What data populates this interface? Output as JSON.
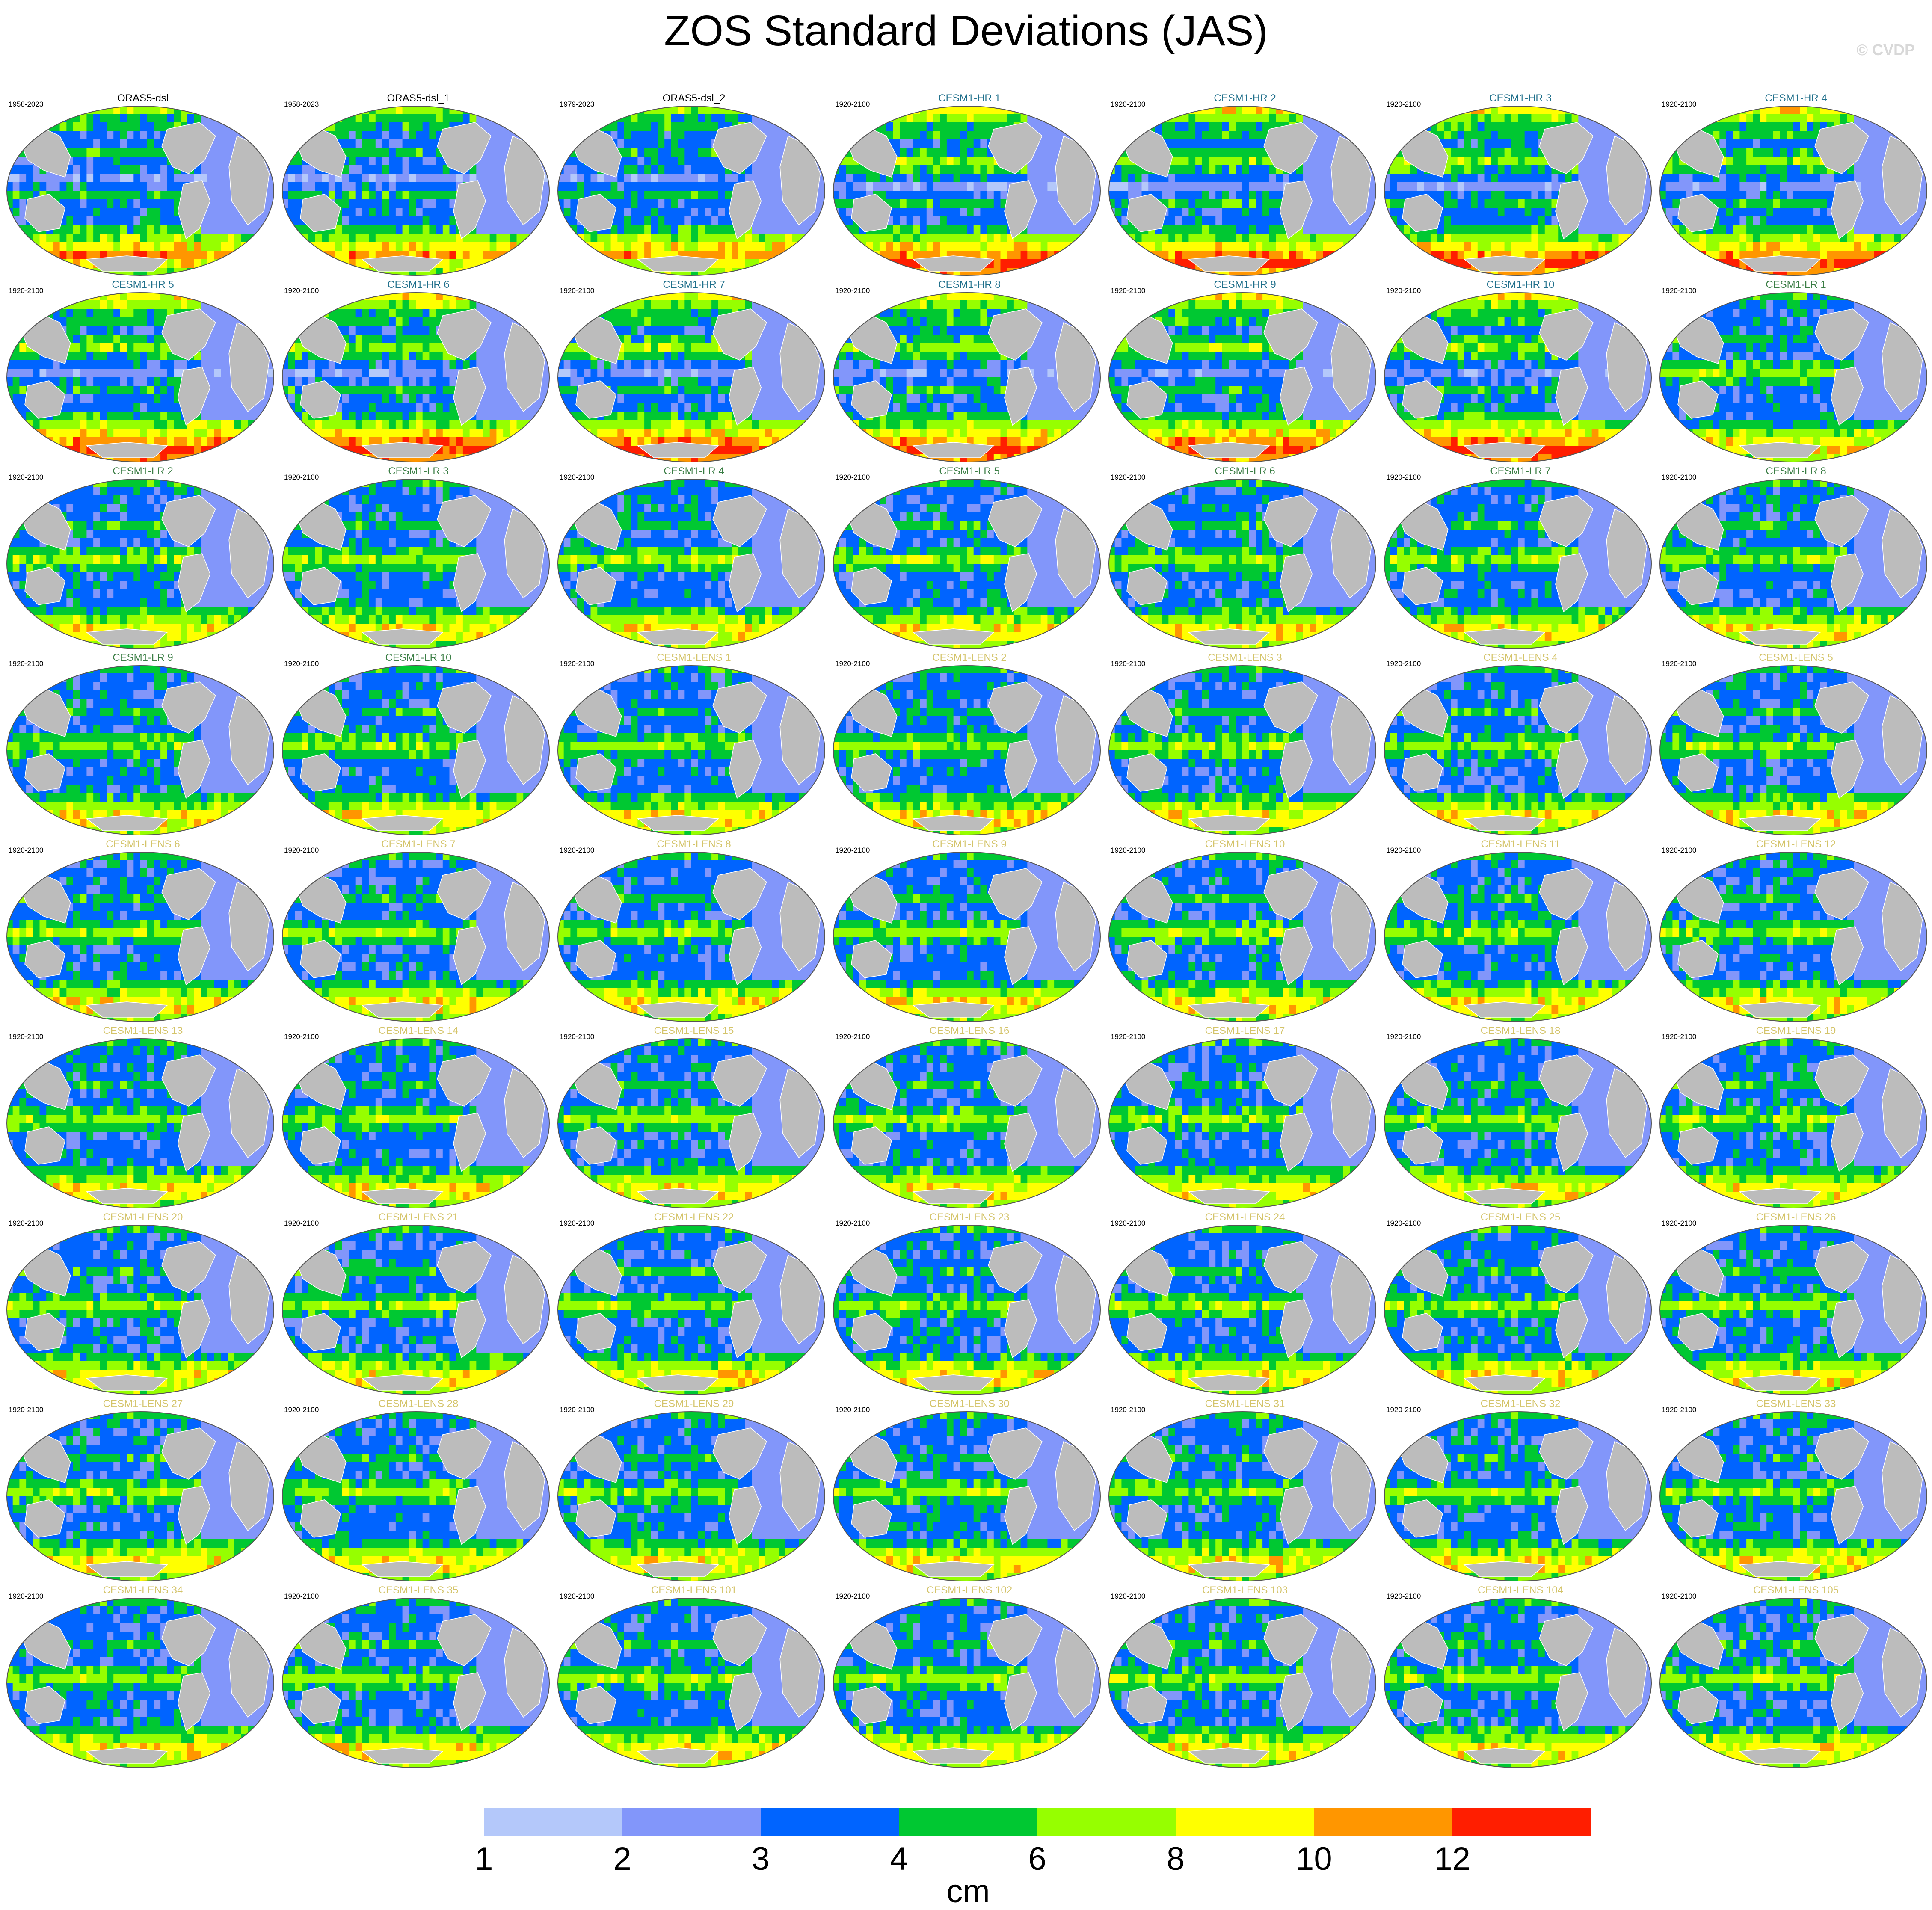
{
  "title": "ZOS Standard Deviations (JAS)",
  "copyright": "© CVDP",
  "colorbar": {
    "units": "cm",
    "tick_labels": [
      "1",
      "2",
      "3",
      "4",
      "6",
      "8",
      "10",
      "12"
    ],
    "bins": [
      {
        "color": "#ffffff"
      },
      {
        "color": "#b4c8fa"
      },
      {
        "color": "#8296fa"
      },
      {
        "color": "#0064ff"
      },
      {
        "color": "#00c832"
      },
      {
        "color": "#96ff00"
      },
      {
        "color": "#ffff00"
      },
      {
        "color": "#ff9600"
      },
      {
        "color": "#ff1e00"
      }
    ]
  },
  "map_style": {
    "land_color": "#bcbcbc",
    "outline_color": "#555555"
  },
  "group_colors": {
    "obs": "#000000",
    "hr": "#1f6f8b",
    "lr": "#3a7d44",
    "lens": "#d4c46a"
  },
  "panels": [
    {
      "label": "ORAS5-dsl",
      "years": "1958-2023",
      "group": "obs"
    },
    {
      "label": "ORAS5-dsl_1",
      "years": "1958-2023",
      "group": "obs"
    },
    {
      "label": "ORAS5-dsl_2",
      "years": "1979-2023",
      "group": "obs"
    },
    {
      "label": "CESM1-HR 1",
      "years": "1920-2100",
      "group": "hr"
    },
    {
      "label": "CESM1-HR 2",
      "years": "1920-2100",
      "group": "hr"
    },
    {
      "label": "CESM1-HR 3",
      "years": "1920-2100",
      "group": "hr"
    },
    {
      "label": "CESM1-HR 4",
      "years": "1920-2100",
      "group": "hr"
    },
    {
      "label": "CESM1-HR 5",
      "years": "1920-2100",
      "group": "hr"
    },
    {
      "label": "CESM1-HR 6",
      "years": "1920-2100",
      "group": "hr"
    },
    {
      "label": "CESM1-HR 7",
      "years": "1920-2100",
      "group": "hr"
    },
    {
      "label": "CESM1-HR 8",
      "years": "1920-2100",
      "group": "hr"
    },
    {
      "label": "CESM1-HR 9",
      "years": "1920-2100",
      "group": "hr"
    },
    {
      "label": "CESM1-HR 10",
      "years": "1920-2100",
      "group": "hr"
    },
    {
      "label": "CESM1-LR 1",
      "years": "1920-2100",
      "group": "lr"
    },
    {
      "label": "CESM1-LR 2",
      "years": "1920-2100",
      "group": "lr"
    },
    {
      "label": "CESM1-LR 3",
      "years": "1920-2100",
      "group": "lr"
    },
    {
      "label": "CESM1-LR 4",
      "years": "1920-2100",
      "group": "lr"
    },
    {
      "label": "CESM1-LR 5",
      "years": "1920-2100",
      "group": "lr"
    },
    {
      "label": "CESM1-LR 6",
      "years": "1920-2100",
      "group": "lr"
    },
    {
      "label": "CESM1-LR 7",
      "years": "1920-2100",
      "group": "lr"
    },
    {
      "label": "CESM1-LR 8",
      "years": "1920-2100",
      "group": "lr"
    },
    {
      "label": "CESM1-LR 9",
      "years": "1920-2100",
      "group": "lr"
    },
    {
      "label": "CESM1-LR 10",
      "years": "1920-2100",
      "group": "lr"
    },
    {
      "label": "CESM1-LENS 1",
      "years": "1920-2100",
      "group": "lens"
    },
    {
      "label": "CESM1-LENS 2",
      "years": "1920-2100",
      "group": "lens"
    },
    {
      "label": "CESM1-LENS 3",
      "years": "1920-2100",
      "group": "lens"
    },
    {
      "label": "CESM1-LENS 4",
      "years": "1920-2100",
      "group": "lens"
    },
    {
      "label": "CESM1-LENS 5",
      "years": "1920-2100",
      "group": "lens"
    },
    {
      "label": "CESM1-LENS 6",
      "years": "1920-2100",
      "group": "lens"
    },
    {
      "label": "CESM1-LENS 7",
      "years": "1920-2100",
      "group": "lens"
    },
    {
      "label": "CESM1-LENS 8",
      "years": "1920-2100",
      "group": "lens"
    },
    {
      "label": "CESM1-LENS 9",
      "years": "1920-2100",
      "group": "lens"
    },
    {
      "label": "CESM1-LENS 10",
      "years": "1920-2100",
      "group": "lens"
    },
    {
      "label": "CESM1-LENS 11",
      "years": "1920-2100",
      "group": "lens"
    },
    {
      "label": "CESM1-LENS 12",
      "years": "1920-2100",
      "group": "lens"
    },
    {
      "label": "CESM1-LENS 13",
      "years": "1920-2100",
      "group": "lens"
    },
    {
      "label": "CESM1-LENS 14",
      "years": "1920-2100",
      "group": "lens"
    },
    {
      "label": "CESM1-LENS 15",
      "years": "1920-2100",
      "group": "lens"
    },
    {
      "label": "CESM1-LENS 16",
      "years": "1920-2100",
      "group": "lens"
    },
    {
      "label": "CESM1-LENS 17",
      "years": "1920-2100",
      "group": "lens"
    },
    {
      "label": "CESM1-LENS 18",
      "years": "1920-2100",
      "group": "lens"
    },
    {
      "label": "CESM1-LENS 19",
      "years": "1920-2100",
      "group": "lens"
    },
    {
      "label": "CESM1-LENS 20",
      "years": "1920-2100",
      "group": "lens"
    },
    {
      "label": "CESM1-LENS 21",
      "years": "1920-2100",
      "group": "lens"
    },
    {
      "label": "CESM1-LENS 22",
      "years": "1920-2100",
      "group": "lens"
    },
    {
      "label": "CESM1-LENS 23",
      "years": "1920-2100",
      "group": "lens"
    },
    {
      "label": "CESM1-LENS 24",
      "years": "1920-2100",
      "group": "lens"
    },
    {
      "label": "CESM1-LENS 25",
      "years": "1920-2100",
      "group": "lens"
    },
    {
      "label": "CESM1-LENS 26",
      "years": "1920-2100",
      "group": "lens"
    },
    {
      "label": "CESM1-LENS 27",
      "years": "1920-2100",
      "group": "lens"
    },
    {
      "label": "CESM1-LENS 28",
      "years": "1920-2100",
      "group": "lens"
    },
    {
      "label": "CESM1-LENS 29",
      "years": "1920-2100",
      "group": "lens"
    },
    {
      "label": "CESM1-LENS 30",
      "years": "1920-2100",
      "group": "lens"
    },
    {
      "label": "CESM1-LENS 31",
      "years": "1920-2100",
      "group": "lens"
    },
    {
      "label": "CESM1-LENS 32",
      "years": "1920-2100",
      "group": "lens"
    },
    {
      "label": "CESM1-LENS 33",
      "years": "1920-2100",
      "group": "lens"
    },
    {
      "label": "CESM1-LENS 34",
      "years": "1920-2100",
      "group": "lens"
    },
    {
      "label": "CESM1-LENS 35",
      "years": "1920-2100",
      "group": "lens"
    },
    {
      "label": "CESM1-LENS 101",
      "years": "1920-2100",
      "group": "lens"
    },
    {
      "label": "CESM1-LENS 102",
      "years": "1920-2100",
      "group": "lens"
    },
    {
      "label": "CESM1-LENS 103",
      "years": "1920-2100",
      "group": "lens"
    },
    {
      "label": "CESM1-LENS 104",
      "years": "1920-2100",
      "group": "lens"
    },
    {
      "label": "CESM1-LENS 105",
      "years": "1920-2100",
      "group": "lens"
    }
  ]
}
